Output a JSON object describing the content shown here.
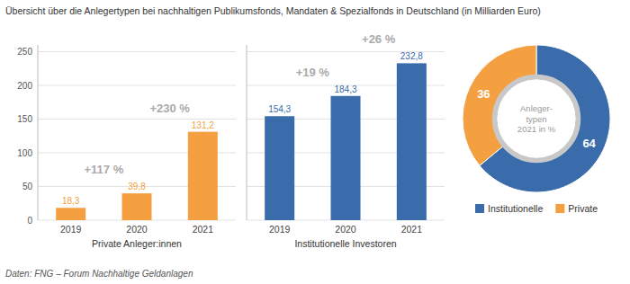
{
  "chart_data": [
    {
      "type": "bar",
      "title": "Übersicht über die Anlegertypen bei nachhaltigen Publikumsfonds, Mandaten & Spezialfonds in Deutschland (in Milliarden Euro)",
      "footnote": "Daten: FNG – Forum Nachhaltige Geldanlagen",
      "xlabel": "Private Anleger:innen",
      "categories": [
        "2019",
        "2020",
        "2021"
      ],
      "values": [
        18.3,
        39.8,
        131.2
      ],
      "value_labels": [
        "18,3",
        "39,8",
        "131,2"
      ],
      "data_labels": true,
      "color": "#F4A040",
      "annotations": [
        "+117 %",
        "+230 %"
      ],
      "ylim": [
        0,
        260
      ],
      "yticks": [
        0,
        50,
        100,
        150,
        200,
        250
      ],
      "grid": true
    },
    {
      "type": "bar",
      "xlabel": "Institutionelle Investoren",
      "categories": [
        "2019",
        "2020",
        "2021"
      ],
      "values": [
        154.3,
        184.3,
        232.8
      ],
      "value_labels": [
        "154,3",
        "184,3",
        "232,8"
      ],
      "data_labels": true,
      "color": "#3A6BAA",
      "annotations": [
        "+19 %",
        "+26 %"
      ],
      "ylim": [
        0,
        260
      ],
      "yticks": [
        0,
        50,
        100,
        150,
        200,
        250
      ],
      "tick_labels": "x",
      "grid": true
    },
    {
      "type": "pie",
      "categories": [
        "Institutionelle",
        "Private"
      ],
      "values": [
        64,
        36
      ],
      "colors": [
        "#3A6BAA",
        "#F4A040"
      ],
      "data_labels": true,
      "annotations": [
        "Anleger-\ntypen\n2021 in %"
      ],
      "legend": "bottom"
    }
  ]
}
